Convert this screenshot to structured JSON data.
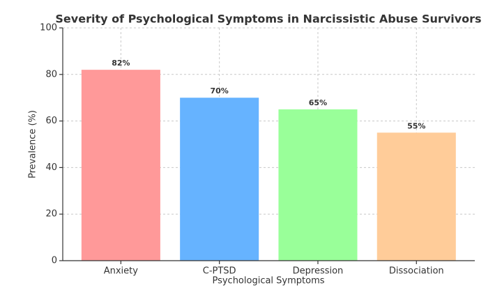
{
  "chart_data": {
    "type": "bar",
    "title": "Severity of Psychological Symptoms in Narcissistic Abuse Survivors",
    "x_label": "Psychological Symptoms",
    "y_label": "Prevalence (%)",
    "categories": [
      "Anxiety",
      "C-PTSD",
      "Depression",
      "Dissociation"
    ],
    "values": [
      82,
      70,
      65,
      55
    ],
    "value_labels": [
      "82%",
      "70%",
      "65%",
      "55%"
    ],
    "colors": [
      "#ff9999",
      "#66b3ff",
      "#99ff99",
      "#ffcc99"
    ],
    "ylim": [
      0,
      100
    ],
    "yticks": [
      0,
      20,
      40,
      60,
      80,
      100
    ],
    "grid": true
  }
}
